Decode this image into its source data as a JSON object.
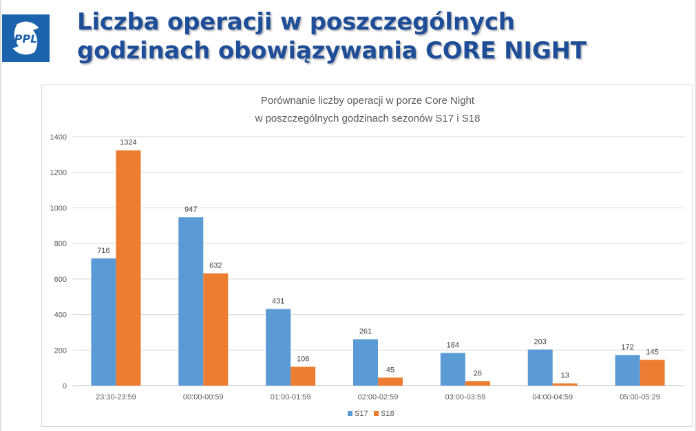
{
  "slide": {
    "title_line1": "Liczba operacji w poszczególnych",
    "title_line2": "godzinach obowiązywania CORE NIGHT",
    "title_color": "#1f4e99",
    "logo_text": "PPL",
    "logo_color": "#1c63ad"
  },
  "chart_data": {
    "type": "bar",
    "title_line1": "Porównanie liczby operacji w porze Core Night",
    "title_line2": "w poszczególnych  godzinach sezonów S17 i S18",
    "categories": [
      "23:30-23:59",
      "00:00-00:59",
      "01:00-01:59",
      "02:00-02:59",
      "03:00-03:59",
      "04:00-04:59",
      "05:00-05:29"
    ],
    "series": [
      {
        "name": "S17",
        "color": "#5b9bd5",
        "values": [
          716,
          947,
          431,
          261,
          184,
          203,
          172
        ]
      },
      {
        "name": "S18",
        "color": "#ed7d31",
        "values": [
          1324,
          632,
          106,
          45,
          26,
          13,
          145
        ]
      }
    ],
    "ylim": [
      0,
      1400
    ],
    "yticks": [
      0,
      200,
      400,
      600,
      800,
      1000,
      1200,
      1400
    ],
    "grid": true,
    "data_labels": true,
    "legend_position": "bottom"
  }
}
